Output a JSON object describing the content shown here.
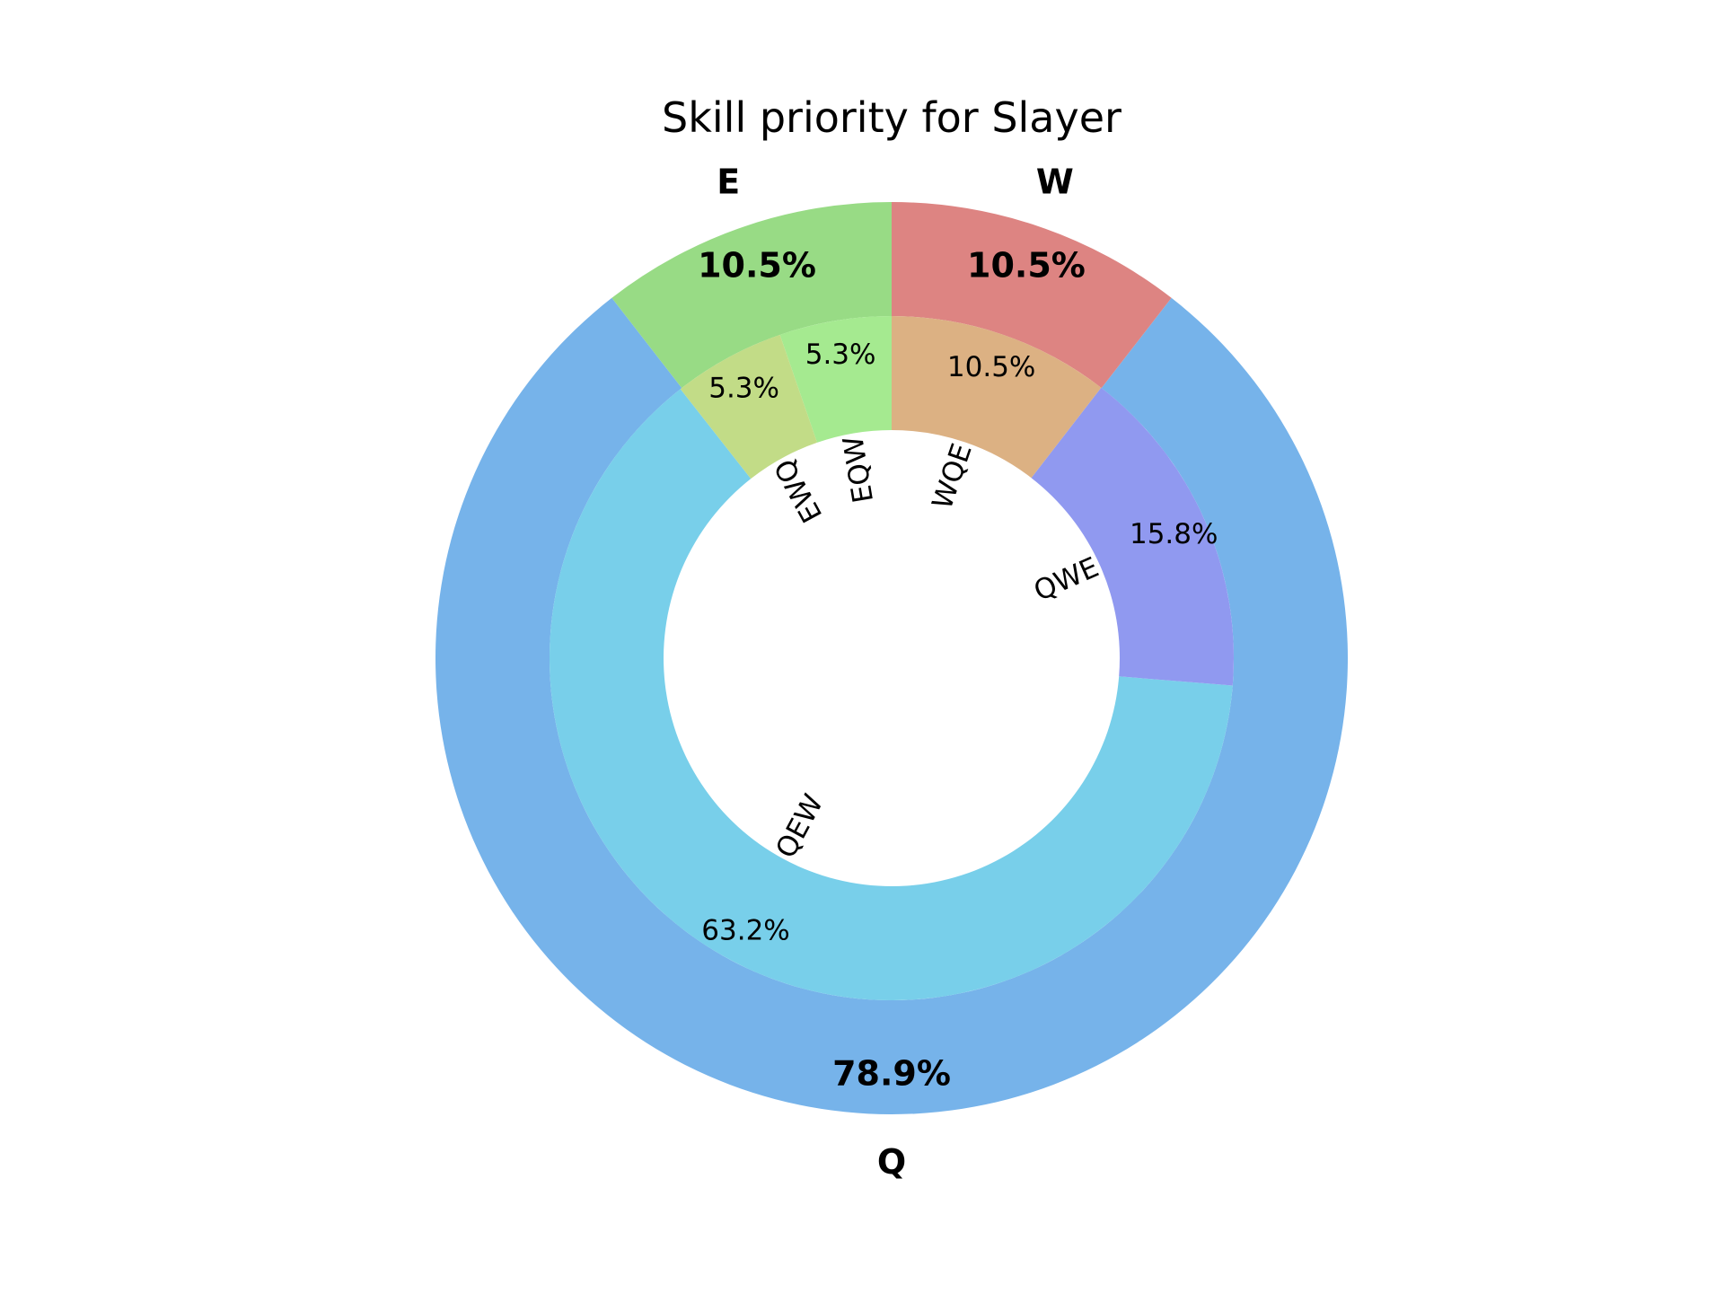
{
  "chart_data": {
    "type": "pie",
    "title": "Skill priority for Slayer",
    "outer": {
      "categories": [
        "Q",
        "W",
        "E"
      ],
      "values": [
        78.9,
        10.5,
        10.5
      ],
      "pct_labels": [
        "78.9%",
        "10.5%",
        "10.5%"
      ],
      "colors": [
        "#76b3ea",
        "#dd8482",
        "#98db85"
      ]
    },
    "inner": {
      "categories": [
        "QEW",
        "QWE",
        "WQE",
        "EQW",
        "EWQ"
      ],
      "values": [
        63.2,
        15.8,
        10.5,
        5.3,
        5.3
      ],
      "pct_labels": [
        "63.2%",
        "15.8%",
        "10.5%",
        "5.3%",
        "5.3%"
      ],
      "colors": [
        "#78cfea",
        "#9099f0",
        "#dcb183",
        "#a5ea90",
        "#c2dc87"
      ]
    }
  }
}
